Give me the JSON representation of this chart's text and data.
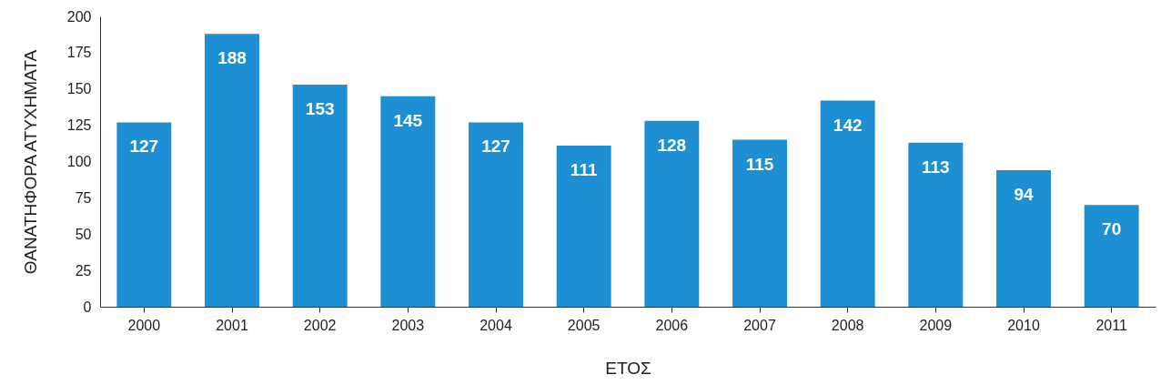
{
  "chart_data": {
    "type": "bar",
    "xlabel": "ΕΤΟΣ",
    "ylabel": "ΘΑΝΑΤΗΦΟΡΑ ΑΤΥΧΗΜΑΤΑ",
    "categories": [
      "2000",
      "2001",
      "2002",
      "2003",
      "2004",
      "2005",
      "2006",
      "2007",
      "2008",
      "2009",
      "2010",
      "2011"
    ],
    "values": [
      127,
      188,
      153,
      145,
      127,
      111,
      128,
      115,
      142,
      113,
      94,
      70
    ],
    "color": "#1f8fd4",
    "ylim": [
      0,
      200
    ],
    "yticks": [
      0,
      25,
      50,
      75,
      100,
      125,
      150,
      175,
      200
    ],
    "data_labels": true,
    "grid": false
  }
}
